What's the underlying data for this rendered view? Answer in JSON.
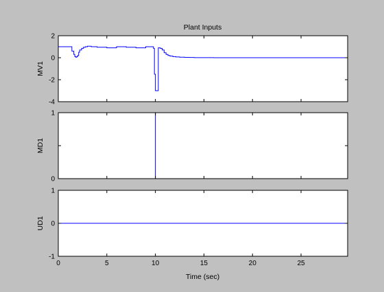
{
  "window": {
    "title": "Plant Inputs",
    "xlabel": "Time (sec)"
  },
  "colors": {
    "figure_bg": "#c0c0c0",
    "axes_bg": "#ffffff",
    "trace": "#0000ff",
    "axis": "#000000"
  },
  "chart_data": [
    {
      "type": "line",
      "title": "Plant Inputs",
      "ylabel": "MV1",
      "xlabel": "",
      "xlim": [
        0,
        29.8
      ],
      "ylim": [
        -4,
        2
      ],
      "xticks": [
        0,
        5,
        10,
        15,
        20,
        25
      ],
      "yticks": [
        -4,
        -2,
        0,
        2
      ],
      "show_xticklabels": false,
      "grid": false,
      "series": [
        {
          "step": true,
          "x": [
            0,
            1.4,
            1.6,
            1.7,
            1.8,
            1.9,
            2.0,
            2.1,
            2.2,
            2.4,
            2.6,
            2.8,
            3.0,
            3.4,
            4.0,
            5.0,
            6.0,
            7.0,
            8.0,
            9.0,
            9.8,
            9.9,
            10.0,
            10.3,
            10.5,
            10.7,
            10.9,
            11.1,
            11.3,
            11.5,
            11.8,
            12.1,
            12.5,
            13.0,
            13.5,
            14.0,
            16.0,
            20.0,
            25.0,
            29.5
          ],
          "y": [
            1.0,
            0.6,
            0.3,
            0.1,
            0.05,
            0.1,
            0.2,
            0.5,
            0.7,
            0.85,
            0.95,
            1.0,
            1.05,
            1.0,
            0.95,
            0.9,
            1.0,
            0.95,
            0.9,
            1.0,
            0.85,
            -1.5,
            -3.0,
            0.9,
            0.85,
            0.7,
            0.45,
            0.3,
            0.2,
            0.15,
            0.1,
            0.07,
            0.05,
            0.03,
            0.02,
            0.01,
            0.0,
            0.0,
            0.0,
            0.0
          ]
        }
      ]
    },
    {
      "type": "line",
      "ylabel": "MD1",
      "xlabel": "",
      "xlim": [
        0,
        29.8
      ],
      "ylim": [
        0,
        1
      ],
      "xticks": [
        0,
        5,
        10,
        15,
        20,
        25
      ],
      "yticks": [
        0,
        0.5,
        1
      ],
      "ytick_labels": [
        "0",
        "",
        "1"
      ],
      "show_xticklabels": false,
      "grid": false,
      "series": [
        {
          "step": false,
          "x": [
            0,
            10.0,
            10.0,
            10.0,
            29.8
          ],
          "y": [
            0,
            0,
            1,
            0,
            0
          ]
        }
      ]
    },
    {
      "type": "line",
      "ylabel": "UD1",
      "xlabel": "Time (sec)",
      "xlim": [
        0,
        29.8
      ],
      "ylim": [
        -1,
        1
      ],
      "xticks": [
        0,
        5,
        10,
        15,
        20,
        25
      ],
      "yticks": [
        -1,
        0,
        1
      ],
      "show_xticklabels": true,
      "grid": false,
      "series": [
        {
          "step": false,
          "x": [
            0,
            29.8
          ],
          "y": [
            0,
            0
          ]
        }
      ]
    }
  ]
}
